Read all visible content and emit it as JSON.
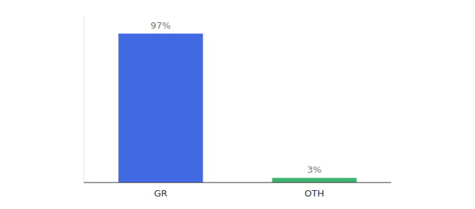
{
  "chart_data": {
    "type": "bar",
    "categories": [
      "GR",
      "OTH"
    ],
    "values": [
      97,
      3
    ],
    "value_labels": [
      "97%",
      "3%"
    ],
    "data_labels": true,
    "colors": [
      "#4169e1",
      "#3cb371"
    ],
    "ylim": [
      0,
      108
    ],
    "grid": false,
    "tick_labels": "x"
  }
}
